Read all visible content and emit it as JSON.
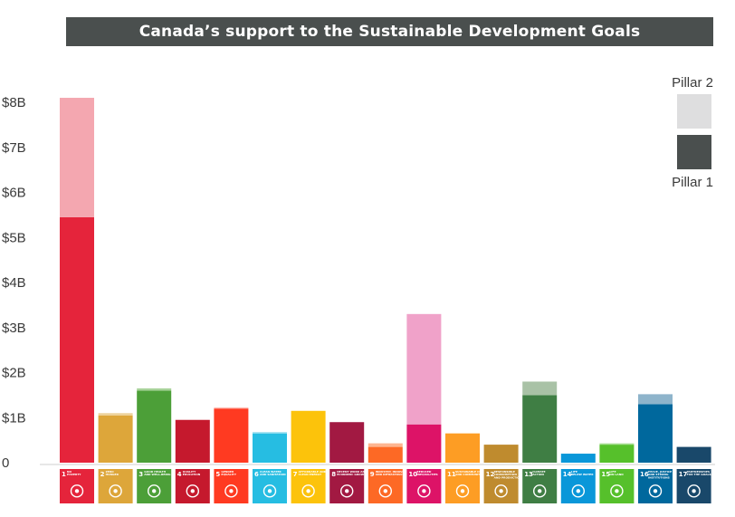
{
  "title": "Canada’s support to the Sustainable Development Goals",
  "chart_data": {
    "type": "bar",
    "stacked": true,
    "title": "Canada’s support to the Sustainable Development Goals",
    "xlabel": "",
    "ylabel": "",
    "ylim": [
      0,
      8.5
    ],
    "yticks": [
      {
        "value": 0,
        "label": "0"
      },
      {
        "value": 1,
        "label": "$1B"
      },
      {
        "value": 2,
        "label": "$2B"
      },
      {
        "value": 3,
        "label": "$3B"
      },
      {
        "value": 4,
        "label": "$4B"
      },
      {
        "value": 5,
        "label": "$5B"
      },
      {
        "value": 6,
        "label": "$6B"
      },
      {
        "value": 7,
        "label": "$7B"
      },
      {
        "value": 8,
        "label": "$8B"
      }
    ],
    "grid": false,
    "legend_position": "top-right",
    "categories": [
      "1",
      "2",
      "3",
      "4",
      "5",
      "6",
      "7",
      "8",
      "9",
      "10",
      "11",
      "12",
      "13",
      "14",
      "15",
      "16",
      "17"
    ],
    "category_labels": [
      [
        "NO",
        "POVERTY"
      ],
      [
        "ZERO",
        "HUNGER"
      ],
      [
        "GOOD HEALTH",
        "AND WELL-BEING"
      ],
      [
        "QUALITY",
        "EDUCATION"
      ],
      [
        "GENDER",
        "EQUALITY"
      ],
      [
        "CLEAN WATER",
        "AND SANITATION"
      ],
      [
        "AFFORDABLE AND",
        "CLEAN ENERGY"
      ],
      [
        "DECENT WORK AND",
        "ECONOMIC GROWTH"
      ],
      [
        "INDUSTRY, INNOVATION",
        "AND INFRASTRUCTURE"
      ],
      [
        "REDUCED",
        "INEQUALITIES"
      ],
      [
        "SUSTAINABLE CITIES",
        "AND COMMUNITIES"
      ],
      [
        "RESPONSIBLE",
        "CONSUMPTION",
        "AND PRODUCTION"
      ],
      [
        "CLIMATE",
        "ACTION"
      ],
      [
        "LIFE",
        "BELOW WATER"
      ],
      [
        "LIFE",
        "ON LAND"
      ],
      [
        "PEACE, JUSTICE",
        "AND STRONG",
        "INSTITUTIONS"
      ],
      [
        "PARTNERSHIPS",
        "FOR THE GOALS"
      ]
    ],
    "colors": [
      "#e5243b",
      "#dda63a",
      "#4c9f38",
      "#c5192d",
      "#ff3a21",
      "#26bde2",
      "#fcc30b",
      "#a21942",
      "#fd6925",
      "#dd1367",
      "#fd9d24",
      "#bf8b2e",
      "#3f7e44",
      "#0a97d9",
      "#56c02b",
      "#00689d",
      "#19486a"
    ],
    "light_colors": [
      "#f4a7b0",
      "#edd29a",
      "#a8d39a",
      "#e99aa4",
      "#ff9c8f",
      "#9adff0",
      "#fde38a",
      "#d68fa6",
      "#fdb590",
      "#f0a2c9",
      "#fdcd91",
      "#dfc493",
      "#a9c2a6",
      "#8ccdec",
      "#aae096",
      "#8eb4cb",
      "#8ca3b5"
    ],
    "series": [
      {
        "name": "Pillar 1",
        "values": [
          5.45,
          1.05,
          1.6,
          0.95,
          1.2,
          0.65,
          1.15,
          0.9,
          0.35,
          0.85,
          0.65,
          0.4,
          1.5,
          0.2,
          0.4,
          1.3,
          0.35
        ]
      },
      {
        "name": "Pillar 2",
        "values": [
          2.65,
          0.05,
          0.05,
          0.0,
          0.02,
          0.03,
          0.0,
          0.0,
          0.08,
          2.45,
          0.0,
          0.0,
          0.3,
          0.0,
          0.03,
          0.22,
          0.0
        ]
      }
    ]
  },
  "legend": {
    "top_label": "Pillar 2",
    "bottom_label": "Pillar 1",
    "top_color": "#dededf",
    "bottom_color": "#4a4f4e"
  }
}
